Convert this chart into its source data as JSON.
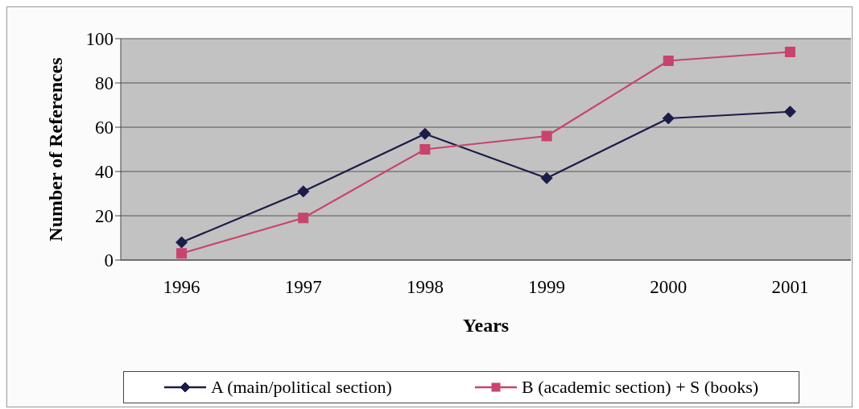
{
  "chart_data": {
    "type": "line",
    "xlabel": "Years",
    "ylabel": "Number of References",
    "categories": [
      "1996",
      "1997",
      "1998",
      "1999",
      "2000",
      "2001"
    ],
    "series": [
      {
        "name": "A (main/political section)",
        "color": "#1c1c4a",
        "marker": "diamond",
        "values": [
          8,
          31,
          57,
          37,
          64,
          67
        ]
      },
      {
        "name": "B (academic section) + S (books)",
        "color": "#c8446c",
        "marker": "square",
        "values": [
          3,
          19,
          50,
          56,
          90,
          94
        ]
      }
    ],
    "ylim": [
      0,
      100
    ],
    "yticks": [
      0,
      20,
      40,
      60,
      80,
      100
    ],
    "grid": "y",
    "legend": "bottom",
    "line_style": "solid"
  }
}
